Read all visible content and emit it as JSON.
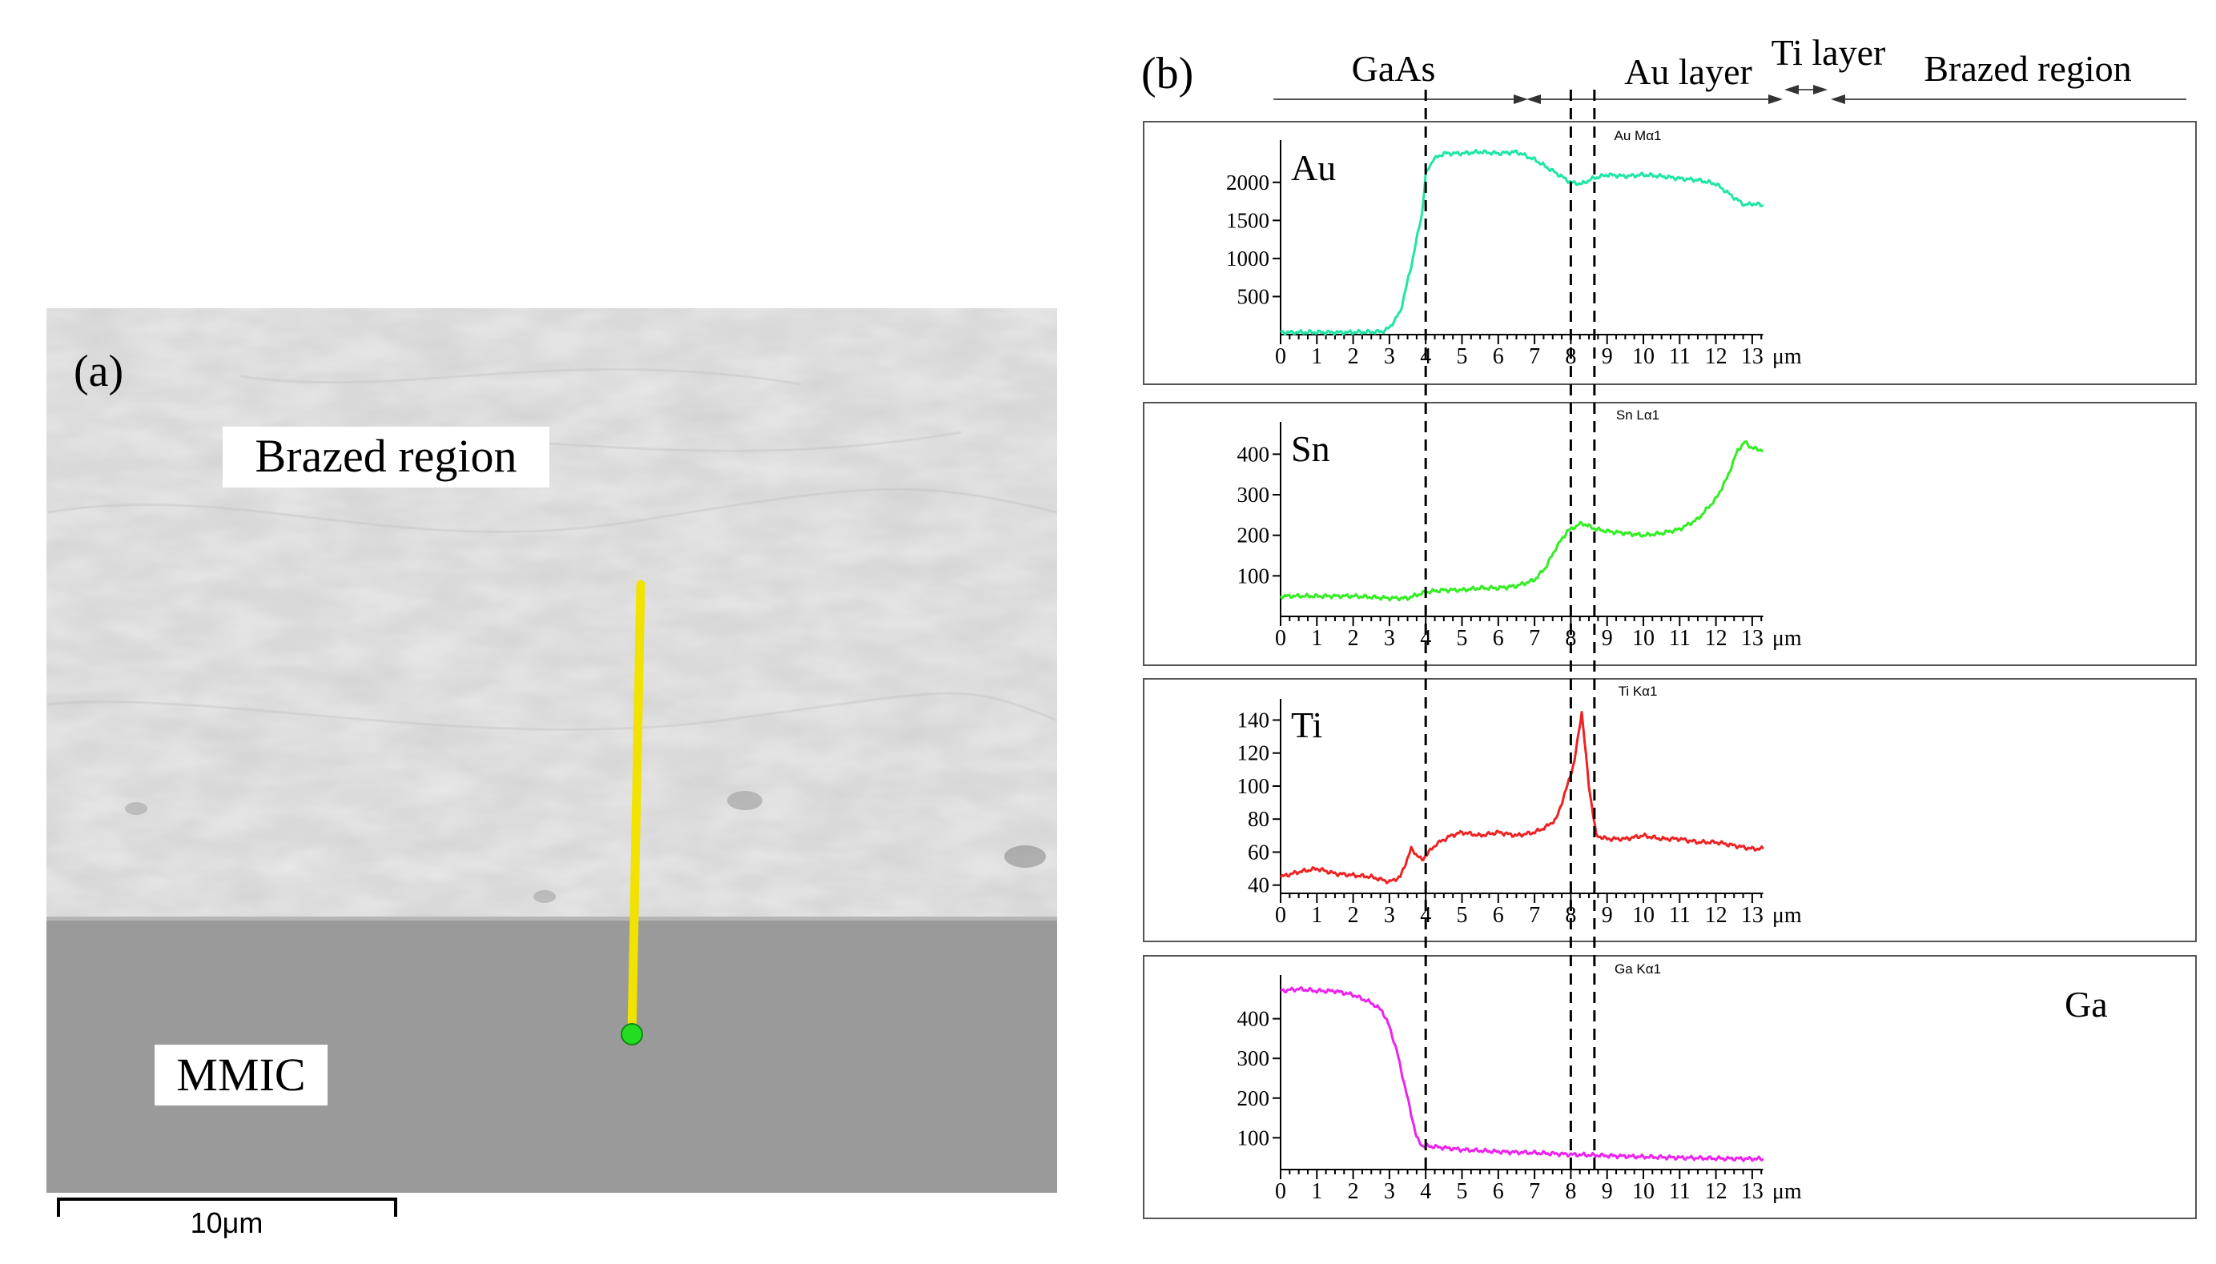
{
  "figure": {
    "panel_a": {
      "label": "(a)",
      "brazed_label": "Brazed region",
      "mmic_label": "MMIC",
      "scale_bar_text": "10μm",
      "colors": {
        "brazed": "#e9e9e9",
        "mmic": "#9a9a9a",
        "scan_line": "#f2e200",
        "start_dot": "#22dd22"
      }
    },
    "panel_b": {
      "label": "(b)",
      "regions": [
        "GaAs",
        "Au layer",
        "Ti layer",
        "Brazed region"
      ],
      "unit": "μm",
      "boundaries_um": [
        4.0,
        8.0,
        8.65
      ]
    }
  },
  "chart_data": [
    {
      "type": "line",
      "element": "Au",
      "title": "Au Mα1",
      "color": "#1de6a6",
      "xlim": [
        0,
        13.3
      ],
      "ylim": [
        0,
        2450
      ],
      "yticks": [
        500,
        1000,
        1500,
        2000
      ],
      "xticks": [
        0,
        1,
        2,
        3,
        4,
        5,
        6,
        7,
        8,
        9,
        10,
        11,
        12,
        13
      ],
      "x": [
        0,
        1,
        2,
        2.8,
        3,
        3.3,
        3.6,
        3.9,
        4.0,
        4.2,
        4.5,
        5,
        5.5,
        6,
        6.5,
        7,
        7.5,
        8,
        8.3,
        8.6,
        9,
        9.5,
        10,
        10.5,
        11,
        11.5,
        12,
        12.5,
        12.8,
        13,
        13.3
      ],
      "values": [
        30,
        30,
        30,
        40,
        90,
        300,
        900,
        1600,
        2100,
        2300,
        2380,
        2380,
        2400,
        2380,
        2400,
        2300,
        2150,
        2000,
        1980,
        2050,
        2100,
        2080,
        2100,
        2080,
        2050,
        2030,
        1980,
        1800,
        1700,
        1720,
        1700
      ]
    },
    {
      "type": "line",
      "element": "Sn",
      "title": "Sn Lα1",
      "color": "#33ee22",
      "xlim": [
        0,
        13.3
      ],
      "ylim": [
        0,
        460
      ],
      "yticks": [
        100,
        200,
        300,
        400
      ],
      "xticks": [
        0,
        1,
        2,
        3,
        4,
        5,
        6,
        7,
        8,
        9,
        10,
        11,
        12,
        13
      ],
      "x": [
        0,
        1,
        2,
        3,
        3.5,
        4,
        4.5,
        5,
        5.5,
        6,
        6.5,
        7,
        7.3,
        7.6,
        7.9,
        8.3,
        8.7,
        9,
        9.5,
        10,
        10.5,
        11,
        11.5,
        12,
        12.3,
        12.6,
        12.8,
        13,
        13.3
      ],
      "values": [
        50,
        50,
        50,
        45,
        45,
        60,
        65,
        65,
        70,
        70,
        75,
        90,
        120,
        170,
        210,
        230,
        215,
        210,
        205,
        200,
        205,
        215,
        240,
        290,
        340,
        410,
        430,
        415,
        410
      ]
    },
    {
      "type": "line",
      "element": "Ti",
      "title": "Ti Kα1",
      "color": "#ee2222",
      "xlim": [
        0,
        13.3
      ],
      "ylim": [
        35,
        148
      ],
      "yticks": [
        40,
        60,
        80,
        100,
        120,
        140
      ],
      "xticks": [
        0,
        1,
        2,
        3,
        4,
        5,
        6,
        7,
        8,
        9,
        10,
        11,
        12,
        13
      ],
      "x": [
        0,
        0.5,
        1,
        1.5,
        2,
        2.5,
        3,
        3.3,
        3.6,
        3.9,
        4.0,
        4.3,
        4.7,
        5,
        5.5,
        6,
        6.5,
        7,
        7.3,
        7.6,
        7.9,
        8.1,
        8.3,
        8.5,
        8.7,
        9,
        9.5,
        10,
        10.5,
        11,
        11.5,
        12,
        12.5,
        13,
        13.3
      ],
      "values": [
        45,
        48,
        50,
        47,
        46,
        45,
        42,
        45,
        62,
        55,
        58,
        65,
        70,
        72,
        70,
        72,
        70,
        72,
        75,
        80,
        100,
        115,
        145,
        100,
        70,
        68,
        68,
        70,
        68,
        68,
        66,
        66,
        64,
        62,
        62
      ]
    },
    {
      "type": "line",
      "element": "Ga",
      "title": "Ga Kα1",
      "color": "#ee22ee",
      "xlim": [
        0,
        13.3
      ],
      "ylim": [
        20,
        490
      ],
      "yticks": [
        100,
        200,
        300,
        400
      ],
      "xticks": [
        0,
        1,
        2,
        3,
        4,
        5,
        6,
        7,
        8,
        9,
        10,
        11,
        12,
        13
      ],
      "x": [
        0,
        0.5,
        1,
        1.5,
        2,
        2.5,
        2.8,
        3,
        3.2,
        3.4,
        3.6,
        3.75,
        3.9,
        4.0,
        4.5,
        5,
        6,
        7,
        8,
        9,
        10,
        11,
        12,
        13,
        13.3
      ],
      "values": [
        470,
        475,
        470,
        470,
        460,
        440,
        420,
        380,
        320,
        240,
        160,
        100,
        80,
        80,
        75,
        70,
        65,
        62,
        58,
        55,
        52,
        50,
        48,
        47,
        47
      ]
    }
  ]
}
